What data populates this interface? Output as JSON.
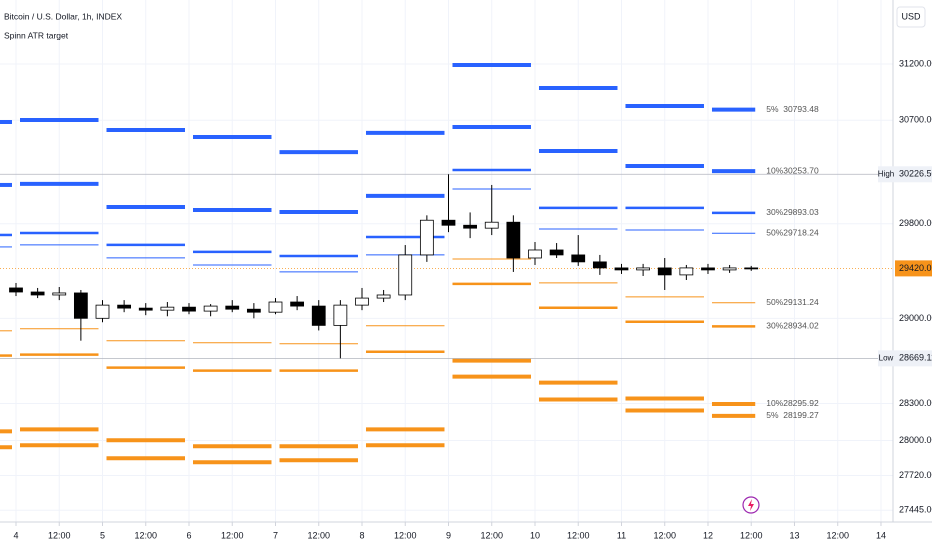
{
  "chart_data": {
    "type": "candlestick",
    "title": "Bitcoin / U.S. Dollar, 1h, INDEX",
    "subtitle": "Spinn ATR target",
    "currency": "USD",
    "log_scale": true,
    "grid": true,
    "up_color": "#ffffff",
    "down_color": "#000000",
    "x": [
      4,
      4.25,
      4.5,
      4.75,
      5,
      5.25,
      5.5,
      5.75,
      6,
      6.25,
      6.5,
      6.75,
      7,
      7.25,
      7.5,
      7.75,
      8,
      8.25,
      8.5,
      8.75,
      9,
      9.25,
      9.5,
      9.75,
      10,
      10.25,
      10.5,
      10.75,
      11,
      11.25,
      11.5,
      11.75,
      12,
      12.25,
      12.5
    ],
    "open": [
      29255,
      29221,
      29196,
      29213,
      29001,
      29111,
      29086,
      29069,
      29094,
      29061,
      29103,
      29077,
      29052,
      29137,
      29103,
      28942,
      29111,
      29170,
      29196,
      29534,
      29830,
      29787,
      29762,
      29813,
      29508,
      29576,
      29534,
      29475,
      29424,
      29407,
      29424,
      29365,
      29424,
      29407,
      29424
    ],
    "high": [
      29297,
      29255,
      29263,
      29238,
      29153,
      29153,
      29128,
      29137,
      29128,
      29120,
      29153,
      29128,
      29170,
      29187,
      29153,
      29153,
      29255,
      29238,
      29618,
      29872,
      30226.5,
      29897,
      30134,
      29872,
      29644,
      29635,
      29703,
      29534,
      29458,
      29458,
      29508,
      29449,
      29458,
      29449,
      29441
    ],
    "low": [
      29187,
      29170,
      29153,
      28815,
      28968,
      29052,
      29027,
      29018,
      29035,
      29018,
      29052,
      29001,
      29035,
      29069,
      28900,
      28669.11,
      29069,
      29137,
      29153,
      29475,
      29728,
      29677,
      29703,
      29390,
      29449,
      29508,
      29441,
      29365,
      29373,
      29356,
      29238,
      29322,
      29373,
      29382,
      29399
    ],
    "close": [
      29221,
      29196,
      29213,
      29001,
      29111,
      29086,
      29069,
      29094,
      29061,
      29103,
      29077,
      29052,
      29137,
      29103,
      28942,
      29111,
      29170,
      29196,
      29534,
      29830,
      29787,
      29762,
      29813,
      29508,
      29576,
      29534,
      29475,
      29424,
      29407,
      29424,
      29365,
      29424,
      29407,
      29424,
      29420.01
    ],
    "segment_days": [
      3,
      4,
      5,
      6,
      7,
      8,
      9,
      10,
      11,
      12
    ],
    "levels": [
      {
        "name": "5%",
        "color": "#2962ff",
        "end_label": "30793.48",
        "values": [
          30684,
          30702,
          30614,
          30552,
          30420,
          30588,
          31191,
          30985,
          30825,
          30793.48
        ]
      },
      {
        "name": "10%",
        "color": "#2962ff",
        "end_label": "30253.70",
        "values": [
          30134,
          30143,
          29944,
          29918,
          29901,
          30039,
          30640,
          30429,
          30299,
          30253.7
        ]
      },
      {
        "name": "30%",
        "color": "#2962ff",
        "end_label": "29893.03",
        "values": [
          29704,
          29721,
          29619,
          29560,
          29525,
          29687,
          30264,
          29936,
          29936,
          29893.03
        ]
      },
      {
        "name": "50%",
        "color": "#2962ff",
        "end_label": "29718.24",
        "values": [
          29602,
          29619,
          29509,
          29449,
          29390,
          29534,
          30099,
          29755,
          29746,
          29718.24
        ]
      },
      {
        "name": "50%",
        "color": "#f7931a",
        "end_label": "29131.24",
        "values": [
          28897,
          28914,
          28815,
          28798,
          28790,
          28939,
          29500,
          29298,
          29180,
          29131.24
        ]
      },
      {
        "name": "30%",
        "color": "#f7931a",
        "end_label": "28934.02",
        "values": [
          28692,
          28700,
          28593,
          28568,
          28568,
          28724,
          29289,
          29089,
          28972,
          28934.02
        ]
      },
      {
        "name": "10%",
        "color": "#f7931a",
        "end_label": "28295.92",
        "values": [
          28074,
          28090,
          28002,
          27954,
          27954,
          28090,
          28650,
          28470,
          28340,
          28295.92
        ]
      },
      {
        "name": "5%",
        "color": "#f7931a",
        "end_label": "28199.27",
        "values": [
          27946,
          27962,
          27858,
          27826,
          27842,
          27962,
          28519,
          28332,
          28243,
          28199.27
        ]
      }
    ],
    "markers": [
      {
        "label": "High",
        "value": 30226.5,
        "value_label": "30226.50"
      },
      {
        "label": "Low",
        "value": 28669.11,
        "value_label": "28669.11"
      }
    ],
    "last_price": {
      "value": 29420.01,
      "color": "#f7931a"
    },
    "xlim": [
      3.815,
      14.139
    ],
    "xticks": [
      4,
      {
        "value": 4.5,
        "label": "12:00"
      },
      5,
      {
        "value": 5.5,
        "label": "12:00"
      },
      6,
      {
        "value": 6.5,
        "label": "12:00"
      },
      7,
      {
        "value": 7.5,
        "label": "12:00"
      },
      8,
      {
        "value": 8.5,
        "label": "12:00"
      },
      9,
      {
        "value": 9.5,
        "label": "12:00"
      },
      10,
      {
        "value": 10.5,
        "label": "12:00"
      },
      11,
      {
        "value": 11.5,
        "label": "12:00"
      },
      12,
      {
        "value": 12.5,
        "label": "12:00"
      },
      13,
      {
        "value": 13.5,
        "label": "12:00"
      },
      14
    ],
    "ylim": [
      27352,
      31779
    ],
    "yticks": [
      {
        "value": 31200,
        "label": "31200.00"
      },
      {
        "value": 30700,
        "label": "30700.00"
      },
      {
        "value": 29800,
        "label": "29800.00"
      },
      {
        "value": 29000,
        "label": "29000.00"
      },
      {
        "value": 28300,
        "label": "28300.00"
      },
      {
        "value": 28000,
        "label": "28000.00"
      },
      {
        "value": 27720,
        "label": "27720.00"
      },
      {
        "value": 27445,
        "label": "27445.00"
      }
    ]
  }
}
